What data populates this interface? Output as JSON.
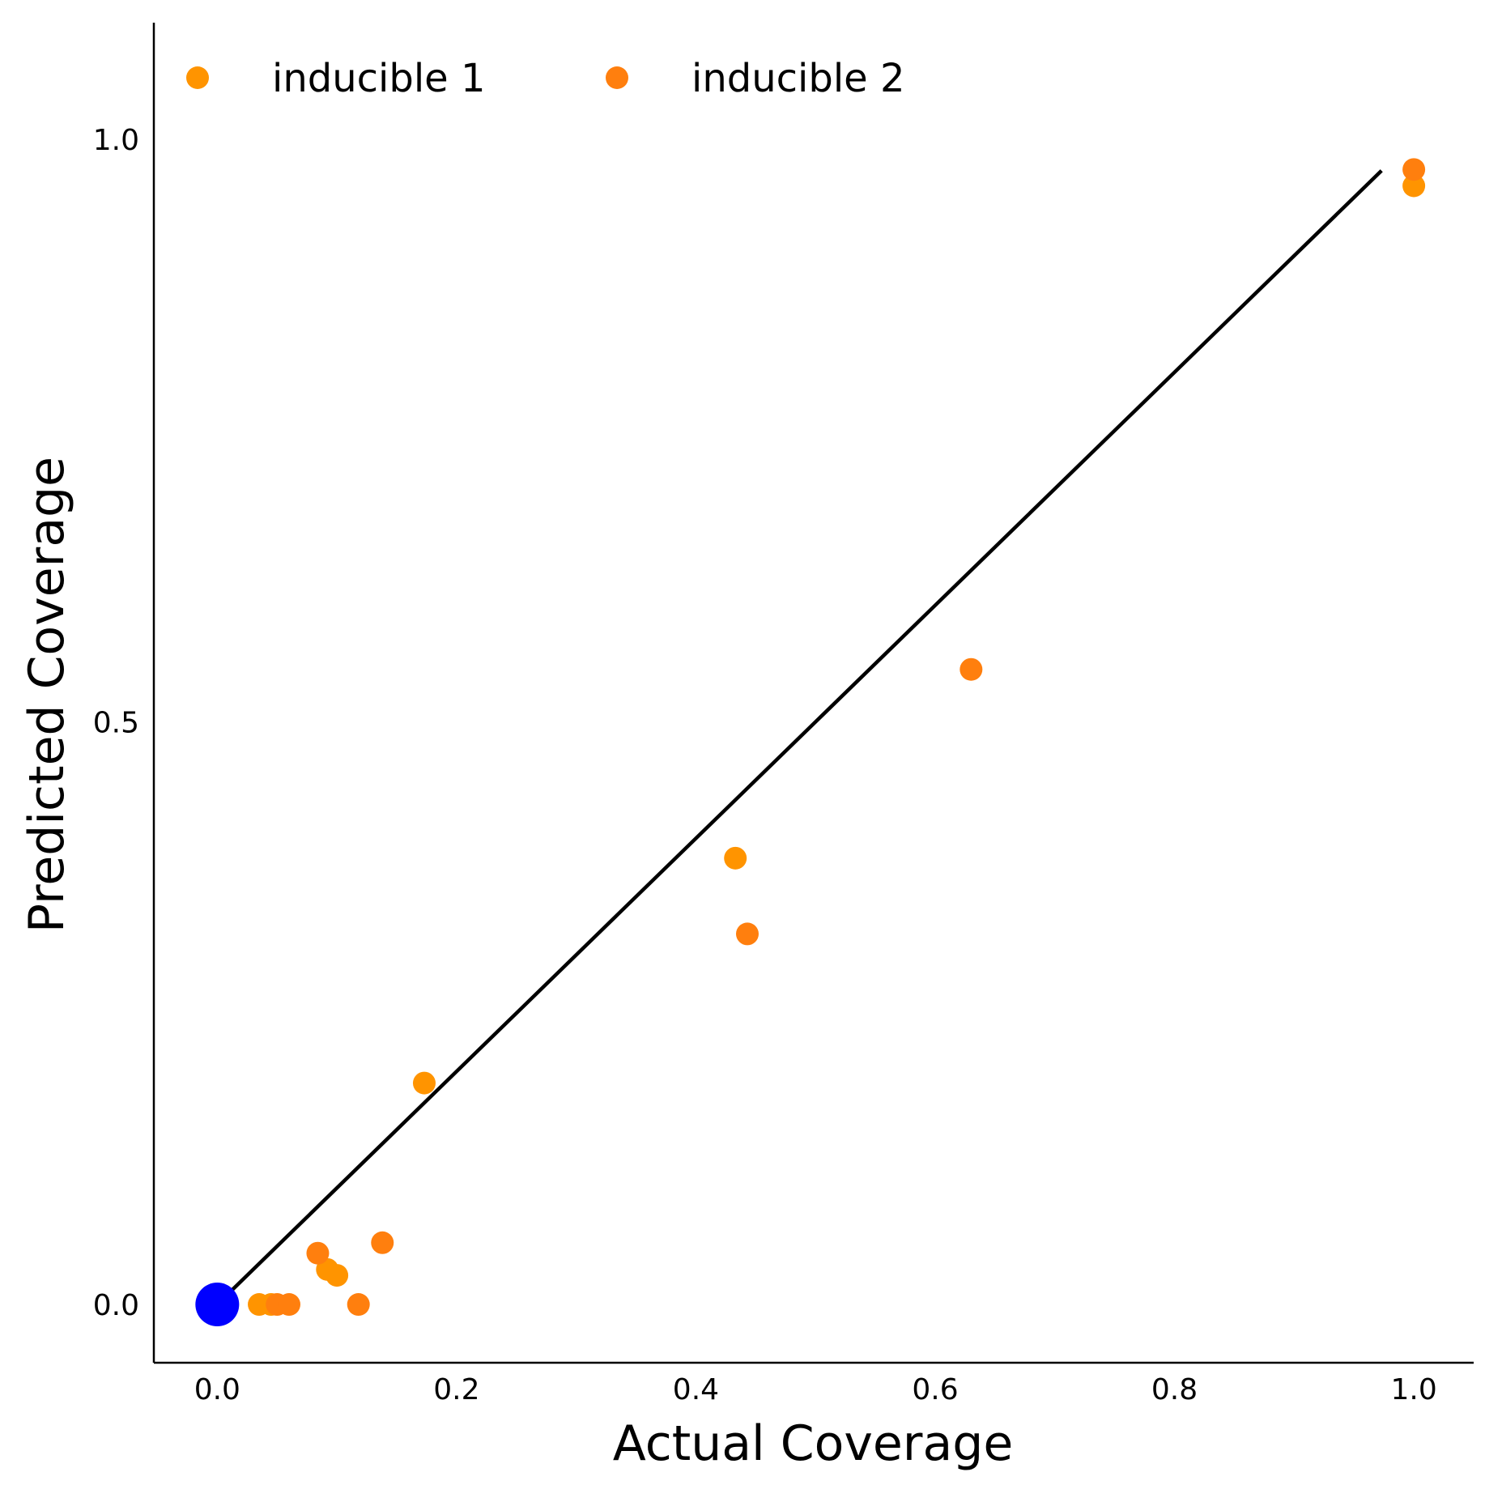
{
  "chart_data": {
    "type": "scatter",
    "xlabel": "Actual Coverage",
    "ylabel": "Predicted Coverage",
    "xlim": [
      -0.053,
      1.05
    ],
    "ylim": [
      -0.05,
      1.1
    ],
    "xticks": [
      "0.0",
      "0.2",
      "0.4",
      "0.6",
      "0.8",
      "1.0"
    ],
    "yticks": [
      "0.0",
      "0.5",
      "1.0"
    ],
    "grid": false,
    "legend_position": "top-left",
    "reference_line": {
      "x": [
        0.0,
        0.973
      ],
      "y": [
        0.0,
        0.973
      ],
      "color": "#000000"
    },
    "series": [
      {
        "name": "inducible 1",
        "color": "#ff9400",
        "points": [
          {
            "x": 0.0,
            "y": 0.0
          },
          {
            "x": 0.035,
            "y": 0.0
          },
          {
            "x": 0.045,
            "y": 0.0
          },
          {
            "x": 0.092,
            "y": 0.03
          },
          {
            "x": 0.1,
            "y": 0.025
          },
          {
            "x": 0.173,
            "y": 0.19
          },
          {
            "x": 0.433,
            "y": 0.383
          },
          {
            "x": 1.0,
            "y": 0.96
          }
        ]
      },
      {
        "name": "inducible 2",
        "color": "#ff7f0e",
        "points": [
          {
            "x": 0.0,
            "y": 0.0
          },
          {
            "x": 0.05,
            "y": 0.0
          },
          {
            "x": 0.06,
            "y": 0.0
          },
          {
            "x": 0.084,
            "y": 0.044
          },
          {
            "x": 0.118,
            "y": 0.0
          },
          {
            "x": 0.138,
            "y": 0.053
          },
          {
            "x": 0.443,
            "y": 0.318
          },
          {
            "x": 0.63,
            "y": 0.545
          },
          {
            "x": 1.0,
            "y": 0.974
          }
        ]
      },
      {
        "color": "#0000ff",
        "large": true,
        "points": [
          {
            "x": 0.0,
            "y": 0.0
          }
        ]
      }
    ]
  }
}
